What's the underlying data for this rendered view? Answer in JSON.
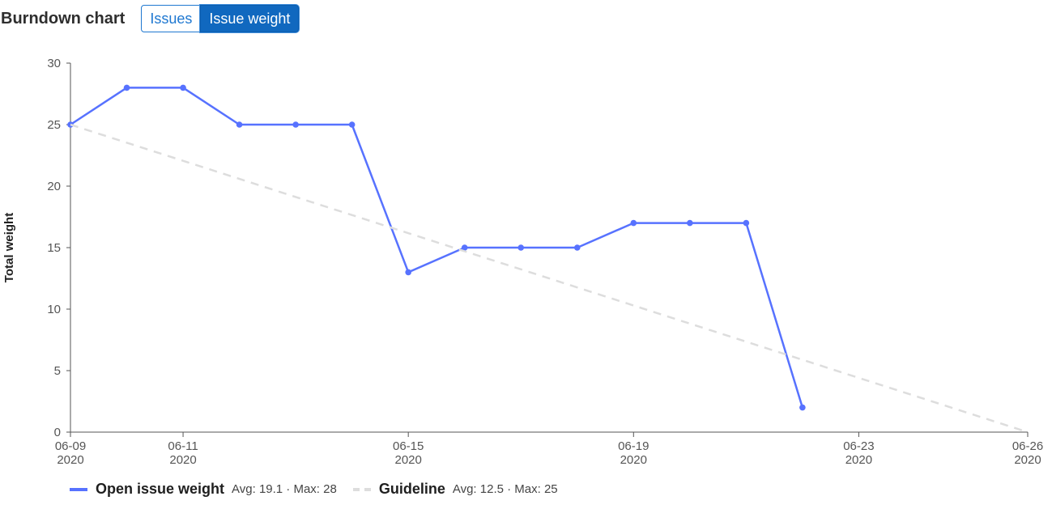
{
  "header": {
    "title": "Burndown chart",
    "toggle": [
      {
        "label": "Issues",
        "active": false
      },
      {
        "label": "Issue weight",
        "active": true
      }
    ]
  },
  "colors": {
    "series": "#5772ff",
    "guideline": "#dddddd",
    "active_button": "#1068bf"
  },
  "chart_data": {
    "type": "line",
    "title": "",
    "xlabel": "",
    "ylabel": "Total weight",
    "ylim": [
      0,
      30
    ],
    "yticks": [
      0,
      5,
      10,
      15,
      20,
      25,
      30
    ],
    "xlim": [
      "2020-06-09",
      "2020-06-26"
    ],
    "xticks": [
      {
        "date": "2020-06-09",
        "label": "06-09",
        "year": "2020"
      },
      {
        "date": "2020-06-11",
        "label": "06-11",
        "year": "2020"
      },
      {
        "date": "2020-06-15",
        "label": "06-15",
        "year": "2020"
      },
      {
        "date": "2020-06-19",
        "label": "06-19",
        "year": "2020"
      },
      {
        "date": "2020-06-23",
        "label": "06-23",
        "year": "2020"
      },
      {
        "date": "2020-06-26",
        "label": "06-26",
        "year": "2020"
      }
    ],
    "grid": false,
    "legend": "bottom-left",
    "series": [
      {
        "name": "Open issue weight",
        "style": "solid",
        "markers": true,
        "x": [
          "2020-06-09",
          "2020-06-10",
          "2020-06-11",
          "2020-06-12",
          "2020-06-13",
          "2020-06-14",
          "2020-06-15",
          "2020-06-16",
          "2020-06-17",
          "2020-06-18",
          "2020-06-19",
          "2020-06-20",
          "2020-06-21",
          "2020-06-22"
        ],
        "y": [
          25,
          28,
          28,
          25,
          25,
          25,
          13,
          15,
          15,
          15,
          17,
          17,
          17,
          2
        ]
      },
      {
        "name": "Guideline",
        "style": "dashed",
        "markers": false,
        "x": [
          "2020-06-09",
          "2020-06-26"
        ],
        "y": [
          25,
          0
        ]
      }
    ]
  },
  "legend": {
    "items": [
      {
        "name": "Open issue weight",
        "stats": "Avg: 19.1 · Max: 28"
      },
      {
        "name": "Guideline",
        "stats": "Avg: 12.5 · Max: 25"
      }
    ]
  }
}
